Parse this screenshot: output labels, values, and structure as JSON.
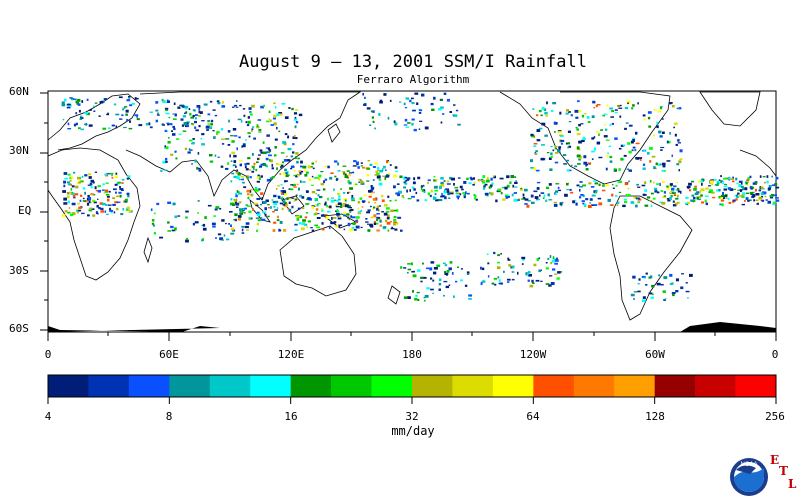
{
  "title": "August 9 – 13, 2001 SSM/I Rainfall",
  "subtitle": "Ferraro Algorithm",
  "lat_labels": [
    "60N",
    "30N",
    "EQ",
    "30S",
    "60S"
  ],
  "lon_labels": [
    "0",
    "60E",
    "120E",
    "180",
    "120W",
    "60W",
    "0"
  ],
  "colorbar": {
    "colors": [
      "#001e78",
      "#0032b4",
      "#0a50ff",
      "#00969b",
      "#00c8c8",
      "#00ffff",
      "#009600",
      "#00c800",
      "#00ff00",
      "#b4b400",
      "#dcdc00",
      "#ffff00",
      "#ff5000",
      "#ff7800",
      "#ffa000",
      "#960000",
      "#c80000",
      "#ff0000"
    ],
    "tick_labels": [
      "4",
      "8",
      "16",
      "32",
      "64",
      "128",
      "256"
    ],
    "units": "mm/day"
  },
  "logo": {
    "text": "NOAA",
    "etl_letters": [
      "E",
      "T",
      "L"
    ]
  }
}
